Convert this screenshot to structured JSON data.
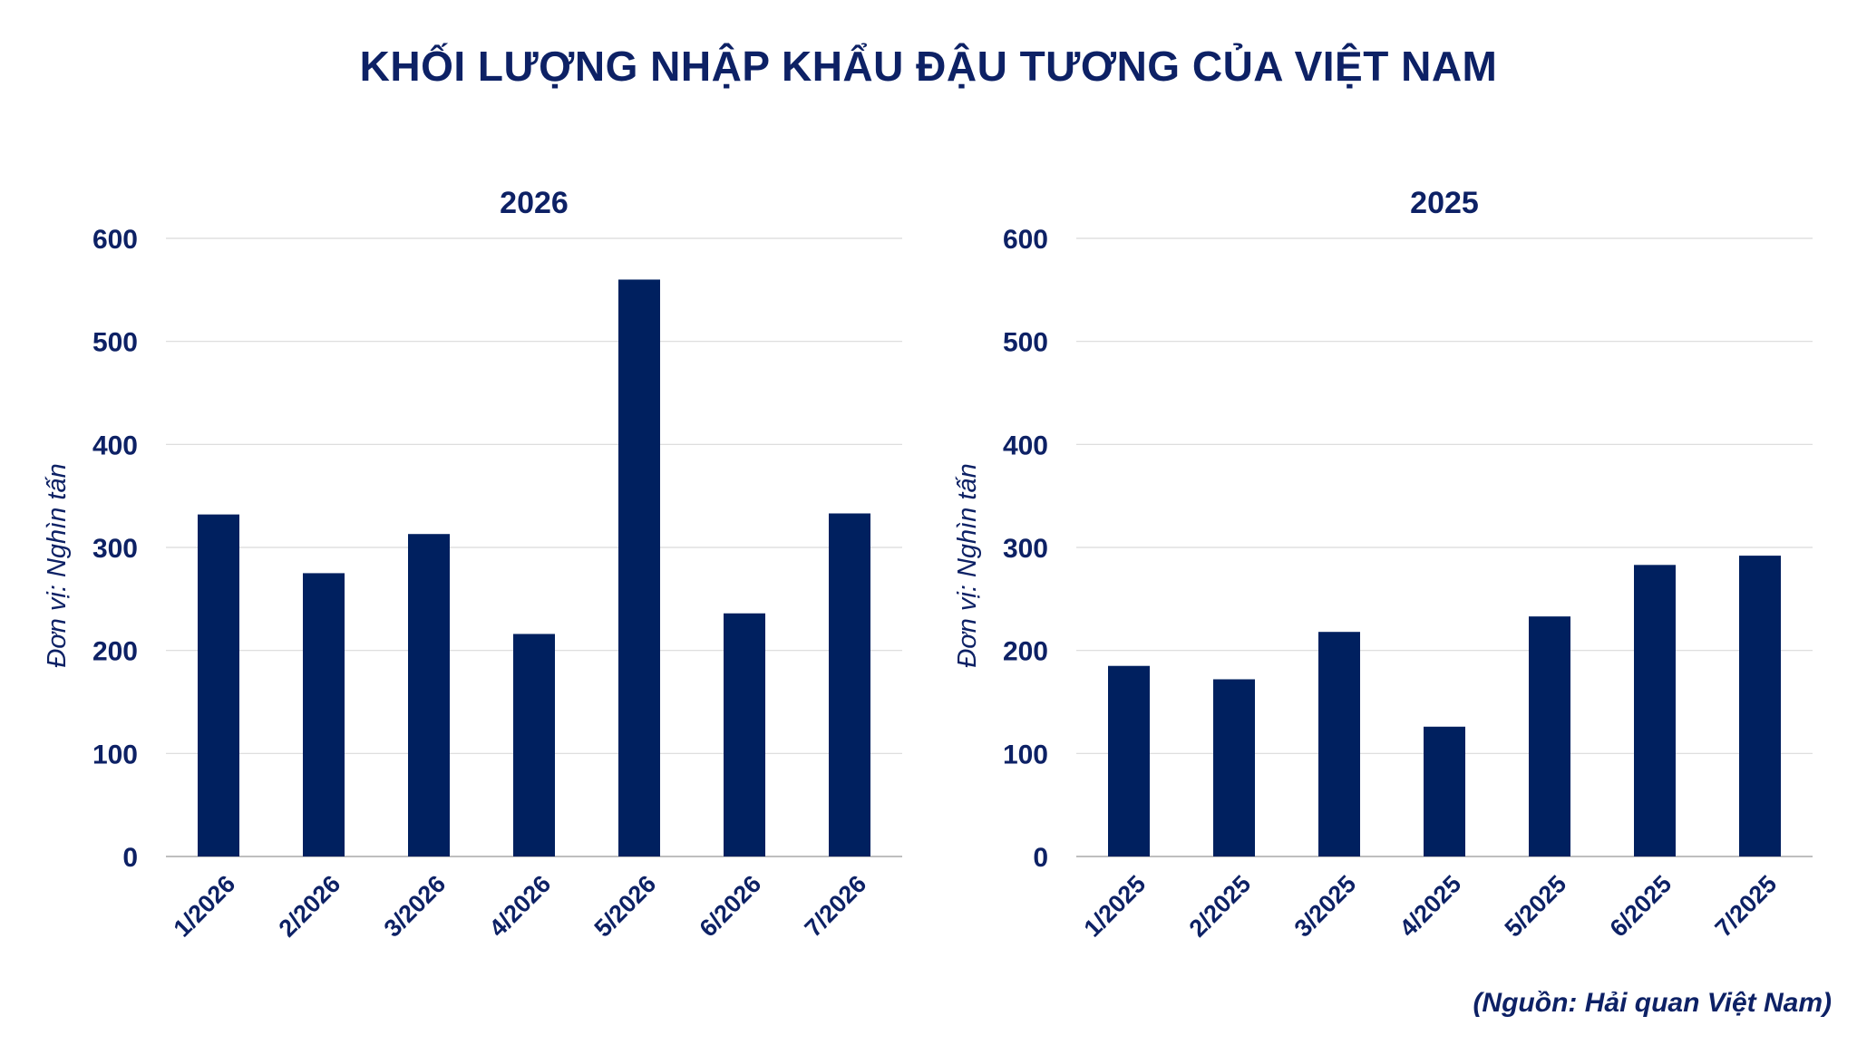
{
  "title": "KHỐI LƯỢNG NHẬP KHẨU ĐẬU TƯƠNG CỦA VIỆT NAM",
  "source": "(Nguồn: Hải quan Việt Nam)",
  "colors": {
    "bar": "#00205f",
    "text": "#0d2165",
    "grid": "#d9d9d9"
  },
  "chart_data": [
    {
      "type": "bar",
      "title": "2026",
      "ylabel": "Đơn vị: Nghìn tấn",
      "ylim": [
        0,
        600
      ],
      "yticks": [
        "0",
        "100",
        "200",
        "300",
        "400",
        "500",
        "600"
      ],
      "categories": [
        "1/2026",
        "2/2026",
        "3/2026",
        "4/2026",
        "5/2026",
        "6/2026",
        "7/2026"
      ],
      "values": [
        332,
        275,
        313,
        216,
        560,
        236,
        333
      ],
      "grid": true,
      "legend": "none"
    },
    {
      "type": "bar",
      "title": "2025",
      "ylabel": "Đơn vị: Nghìn tấn",
      "ylim": [
        0,
        600
      ],
      "yticks": [
        "0",
        "100",
        "200",
        "300",
        "400",
        "500",
        "600"
      ],
      "categories": [
        "1/2025",
        "2/2025",
        "3/2025",
        "4/2025",
        "5/2025",
        "6/2025",
        "7/2025"
      ],
      "values": [
        185,
        172,
        218,
        126,
        233,
        283,
        292
      ],
      "grid": true,
      "legend": "none"
    }
  ]
}
